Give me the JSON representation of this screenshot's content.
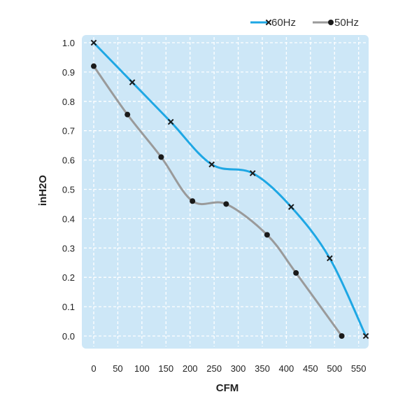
{
  "chart_data": {
    "type": "line",
    "title": "",
    "xlabel": "CFM",
    "ylabel": "inH2O",
    "xlim": [
      0,
      565
    ],
    "ylim": [
      0,
      1.0
    ],
    "x_ticks": [
      0,
      50,
      100,
      150,
      200,
      250,
      300,
      350,
      400,
      450,
      500,
      550
    ],
    "x_tick_labels": [
      "0",
      "50",
      "100",
      "150",
      "200",
      "250",
      "300",
      "350",
      "400",
      "450",
      "500",
      "550"
    ],
    "y_ticks": [
      0,
      0.1,
      0.2,
      0.3,
      0.4,
      0.5,
      0.6,
      0.7,
      0.8,
      0.9,
      1.0
    ],
    "y_tick_labels": [
      "0.0",
      "0.1",
      "0.2",
      "0.3",
      "0.4",
      "0.5",
      "0.6",
      "0.7",
      "0.8",
      "0.9",
      "1.0"
    ],
    "grid": true,
    "legend_position": "top-right",
    "plot_background": "#cde7f7",
    "series": [
      {
        "name": "60Hz",
        "color": "#1ea7e4",
        "marker": "x",
        "x": [
          0,
          80,
          160,
          245,
          330,
          410,
          490,
          565
        ],
        "y": [
          1.0,
          0.865,
          0.73,
          0.585,
          0.555,
          0.44,
          0.265,
          0.0
        ]
      },
      {
        "name": "50Hz",
        "color": "#9a9a9a",
        "marker": "circle",
        "x": [
          0,
          70,
          140,
          205,
          275,
          360,
          420,
          515
        ],
        "y": [
          0.92,
          0.755,
          0.61,
          0.46,
          0.45,
          0.345,
          0.215,
          0.0
        ]
      }
    ]
  }
}
